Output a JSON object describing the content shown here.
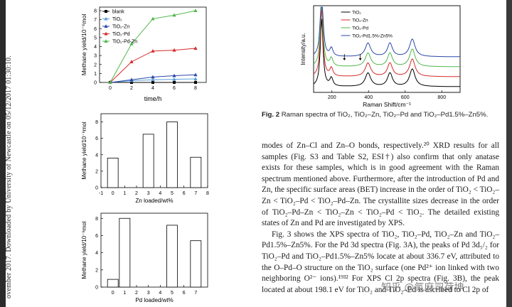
{
  "side_note": "ovember 2017. Downloaded by University of Newcastle on 05/12/2017 01:30:10.",
  "chart_data": [
    {
      "type": "line",
      "xlabel": "time/h",
      "ylabel": "Methane yield/10⁻⁶mol",
      "x": [
        0,
        2,
        4,
        6,
        8
      ],
      "xlim": [
        -1,
        9
      ],
      "ylim": [
        0,
        8.4
      ],
      "xticks": [
        "0",
        "2",
        "4",
        "6",
        "8"
      ],
      "yticks": [
        "0",
        "1",
        "2",
        "3",
        "4",
        "5",
        "6",
        "7",
        "8"
      ],
      "legend_position": "top-left",
      "series": [
        {
          "name": "blank",
          "color": "#000000",
          "marker": "square",
          "values": [
            0,
            0,
            0,
            0,
            0
          ]
        },
        {
          "name": "TiO₂",
          "color": "#5aa0d8",
          "marker": "triangle",
          "values": [
            0,
            0.2,
            0.3,
            0.35,
            0.4
          ]
        },
        {
          "name": "TiO₂-Zn",
          "color": "#2a48a8",
          "marker": "triangle",
          "values": [
            0,
            0.3,
            0.6,
            0.75,
            0.85
          ]
        },
        {
          "name": "TiO₂-Pd",
          "color": "#d42a2a",
          "marker": "triangle",
          "values": [
            0,
            2.3,
            3.5,
            3.6,
            3.8
          ]
        },
        {
          "name": "TiO₂-Pd-Zn",
          "color": "#4eb84a",
          "marker": "triangle",
          "values": [
            0,
            4.3,
            7.1,
            7.5,
            8.0
          ]
        }
      ]
    },
    {
      "type": "bar",
      "xlabel": "Zn loaded/wt%",
      "ylabel": "Methane yield/10⁻⁶mol",
      "categories": [
        0,
        3,
        5,
        7
      ],
      "values": [
        3.6,
        6.5,
        8.0,
        3.7
      ],
      "xlim": [
        -1,
        8
      ],
      "ylim": [
        0,
        9
      ],
      "xticks": [
        "-1",
        "0",
        "1",
        "2",
        "3",
        "4",
        "5",
        "6",
        "7",
        "8"
      ],
      "yticks": [
        "0",
        "2",
        "4",
        "6",
        "8"
      ]
    },
    {
      "type": "bar",
      "xlabel": "Pd loaded/wt%",
      "ylabel": "Methane yield/10⁻⁶mol",
      "categories": [
        0,
        1,
        5,
        7
      ],
      "values": [
        0.9,
        8.0,
        7.2,
        5.4
      ],
      "xlim": [
        -1,
        8
      ],
      "ylim": [
        0,
        8.6
      ],
      "xticks": [
        "0",
        "1",
        "2",
        "3",
        "4",
        "5",
        "6",
        "7"
      ],
      "yticks": [
        "0",
        "2",
        "4",
        "6",
        "8"
      ]
    },
    {
      "type": "line",
      "xlabel": "Raman Shift/cm⁻¹",
      "ylabel": "Intensity/a.u.",
      "xticks": [
        "200",
        "400",
        "600",
        "800"
      ],
      "legend_position": "top-left",
      "series": [
        {
          "name": "TiO₂",
          "color": "#000000",
          "offset": 0
        },
        {
          "name": "TiO₂-Zn",
          "color": "#d42a2a",
          "offset": 1
        },
        {
          "name": "TiO₂-Pd",
          "color": "#4eb84a",
          "offset": 2
        },
        {
          "name": "TiO₂-Pd1.5%-Zn5%",
          "color": "#2a48a8",
          "offset": 3
        }
      ]
    }
  ],
  "figure2_caption": {
    "label": "Fig. 2",
    "text": "Raman spectra of TiO₂, TiO₂–Zn, TiO₂–Pd and TiO₂–Pd1.5%–Zn5%."
  },
  "body_paragraphs": [
    "modes of Zn–Cl and Zn–O bonds, respectively.²⁰ XRD results for all samples (Fig. S3 and Table S2, ESI†) also confirm that only anatase exists for these samples, which is in good agreement with the Raman spectrum mentioned above. Furthermore, after the introduction of Pd and Zn, the specific surface areas (BET) increase in the order of TiO₂ < TiO₂–Zn < TiO₂–Pd < TiO₂–Pd–Zn. The crystallite sizes decrease in the order of TiO₂–Pd–Zn < TiO₂–Zn < TiO₂–Pd < TiO₂. The detailed existing states of Zn and Pd are investigated by XPS.",
    "Fig. 3 shows the XPS spectra of TiO₂, TiO₂–Pd, TiO₂–Zn and TiO₂–Pd1.5%–Zn5%. For the Pd 3d spectra (Fig. 3A), the peaks of Pd 3d₅/₂ for TiO₂–Pd and TiO₂–Pd1.5%–Zn5% locate at about 336.7 eV, attributed to the O–Pd–O structure on the TiO₂ surface (one Pd²⁺ ion linked with two neighboring O²⁻ ions).¹⁹³² For XPS Cl 2p spectra (Fig. 3B), the peak located at about 198.1 eV for TiO₂ and TiO₂–Pd is ascribed to Cl 2p of"
  ],
  "watermark": "知乎 @氮麻司荷坤"
}
